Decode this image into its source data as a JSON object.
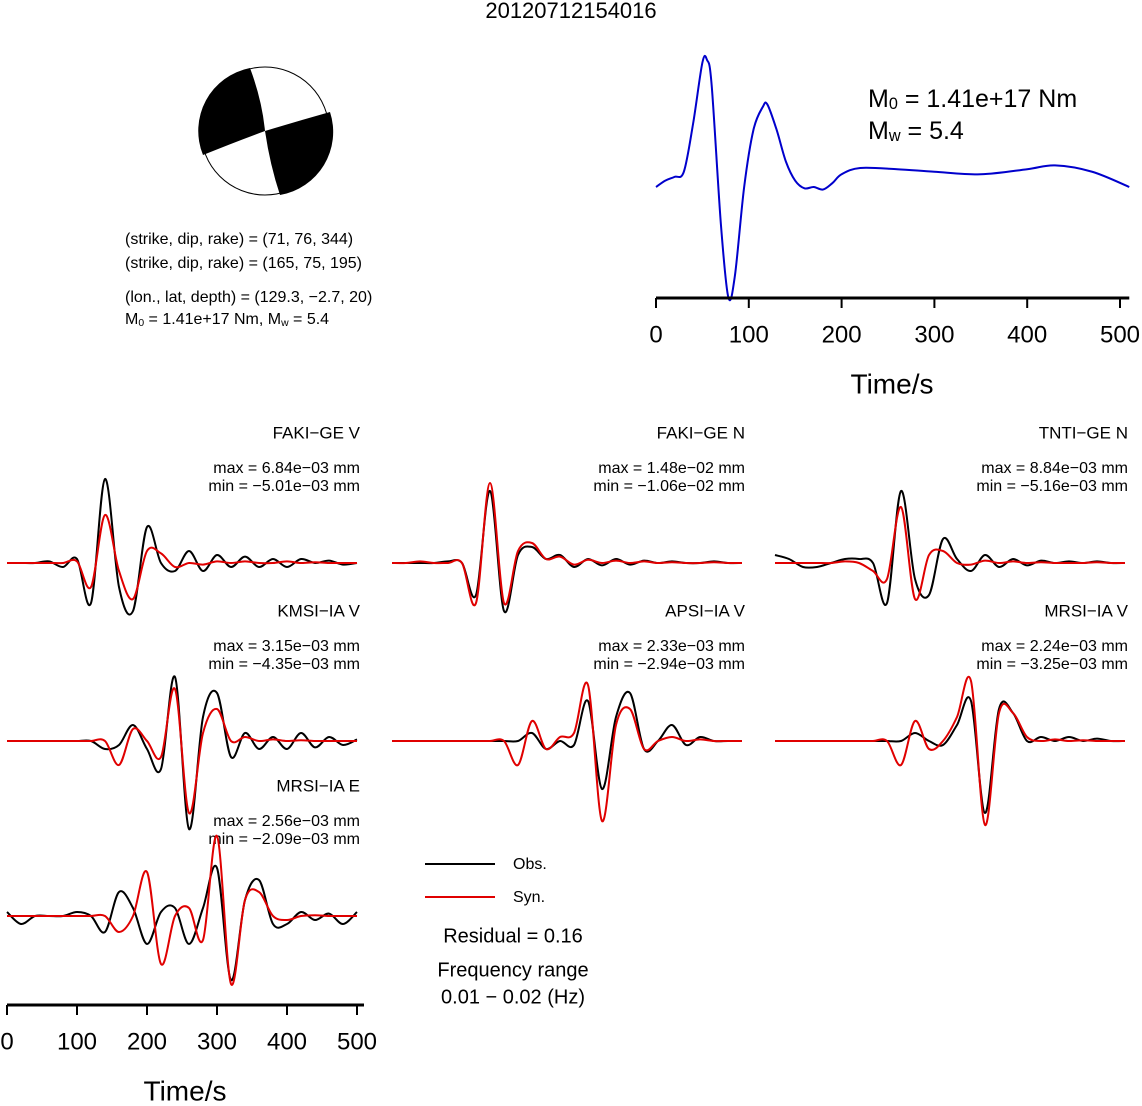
{
  "title": "20120712154016",
  "mechanism": {
    "plane1": "(strike, dip, rake) = (71, 76, 344)",
    "plane2": "(strike, dip, rake) = (165, 75, 195)",
    "location": "(lon., lat, depth) = (129.3, −2.7, 20)",
    "magnitude": [
      "M",
      "0",
      " = 1.41e+17 Nm, M",
      "w",
      " = 5.4"
    ]
  },
  "legend": [
    {
      "name": "Obs.",
      "color": "#000000"
    },
    {
      "name": "Syn.",
      "color": "#e00000"
    }
  ],
  "residual": "Residual = 0.16",
  "frequency": [
    "Frequency range",
    "0.01 − 0.02 (Hz)"
  ],
  "chart_data": [
    {
      "type": "line",
      "color": "#0000cc",
      "moment_label": [
        "M",
        "0",
        " = 1.41e+17 Nm"
      ],
      "magnitude_label": [
        "M",
        "w",
        " = 5.4"
      ],
      "x": [
        0,
        10,
        20,
        30,
        40,
        50,
        55,
        60,
        70,
        78,
        85,
        95,
        105,
        115,
        120,
        130,
        140,
        150,
        160,
        170,
        180,
        190,
        200,
        220,
        260,
        300,
        350,
        400,
        430,
        470,
        510
      ],
      "values": [
        0,
        0.05,
        0.08,
        0.12,
        0.5,
        0.98,
        1.0,
        0.8,
        -0.3,
        -0.87,
        -0.7,
        0,
        0.45,
        0.63,
        0.65,
        0.45,
        0.2,
        0.05,
        -0.01,
        0,
        -0.02,
        0.03,
        0.1,
        0.15,
        0.14,
        0.12,
        0.1,
        0.14,
        0.17,
        0.12,
        0
      ],
      "xlim": [
        0,
        510
      ],
      "xticks": [
        0,
        100,
        200,
        300,
        400,
        500
      ],
      "xlabel": "Time/s"
    },
    {
      "type": "waveform",
      "station": "FAKI−GE V",
      "max": "max = 6.84e−03 mm",
      "min": "min = −5.01e−03 mm",
      "xlim": [
        0,
        510
      ],
      "x": [
        0,
        20,
        40,
        60,
        80,
        100,
        120,
        140,
        160,
        180,
        200,
        220,
        240,
        260,
        280,
        300,
        320,
        340,
        360,
        380,
        400,
        420,
        440,
        460,
        480,
        500
      ],
      "series": [
        {
          "values": [
            0,
            0,
            0,
            0.02,
            -0.05,
            0.05,
            -0.5,
            1.05,
            -0.3,
            -0.6,
            0.45,
            0,
            -0.1,
            0.15,
            -0.1,
            0.1,
            -0.05,
            0.08,
            -0.05,
            0.05,
            -0.05,
            0.05,
            0,
            0.03,
            -0.02,
            0
          ]
        },
        {
          "values": [
            0,
            0,
            0,
            0,
            0,
            0.02,
            -0.3,
            0.6,
            -0.1,
            -0.45,
            0.15,
            0.12,
            -0.05,
            0,
            -0.02,
            0.02,
            0,
            0.02,
            0,
            0,
            0.02,
            0,
            0.01,
            0,
            0,
            0
          ]
        }
      ]
    },
    {
      "type": "waveform",
      "station": "FAKI−GE N",
      "max": "max = 1.48e−02 mm",
      "min": "min = −1.06e−02 mm",
      "xlim": [
        0,
        510
      ],
      "x": [
        0,
        20,
        40,
        60,
        80,
        100,
        120,
        140,
        160,
        180,
        200,
        220,
        240,
        260,
        280,
        300,
        320,
        340,
        360,
        380,
        400,
        420,
        440,
        460,
        480,
        500
      ],
      "series": [
        {
          "values": [
            0,
            0,
            0,
            0,
            0.02,
            0,
            -0.4,
            0.9,
            -0.6,
            0.1,
            0.2,
            0.05,
            0.1,
            -0.05,
            0.05,
            -0.03,
            0.05,
            -0.02,
            0.03,
            0,
            0.02,
            0,
            0,
            0.02,
            0,
            0
          ]
        },
        {
          "values": [
            0,
            0,
            0.02,
            0,
            0,
            0,
            -0.5,
            1.0,
            -0.5,
            0.15,
            0.25,
            0.05,
            0.08,
            -0.02,
            0.04,
            0,
            0.03,
            0,
            0.02,
            0,
            0.01,
            0,
            0,
            0.01,
            0,
            0
          ]
        }
      ]
    },
    {
      "type": "waveform",
      "station": "TNTI−GE N",
      "max": "max = 8.84e−03 mm",
      "min": "min = −5.16e−03 mm",
      "xlim": [
        0,
        510
      ],
      "x": [
        0,
        20,
        40,
        60,
        80,
        100,
        120,
        140,
        160,
        180,
        200,
        220,
        240,
        260,
        280,
        300,
        320,
        340,
        360,
        380,
        400,
        420,
        440,
        460,
        480,
        500
      ],
      "series": [
        {
          "values": [
            0.1,
            0.05,
            -0.05,
            -0.05,
            0,
            0.05,
            0.05,
            0,
            -0.5,
            0.9,
            -0.2,
            -0.4,
            0.3,
            0.05,
            -0.1,
            0.1,
            -0.05,
            0.05,
            -0.03,
            0.03,
            0,
            0.02,
            0,
            0.02,
            0,
            0
          ]
        },
        {
          "values": [
            0,
            0,
            0,
            0,
            0,
            0.02,
            0,
            -0.1,
            -0.2,
            0.7,
            -0.45,
            0.1,
            0.15,
            0,
            -0.02,
            0.03,
            0,
            0.02,
            0,
            0.01,
            0,
            0,
            0,
            0.01,
            0,
            0
          ]
        }
      ]
    },
    {
      "type": "waveform",
      "station": "KMSI−IA V",
      "max": "max = 3.15e−03 mm",
      "min": "min = −4.35e−03 mm",
      "xlim": [
        0,
        510
      ],
      "x": [
        0,
        20,
        40,
        60,
        80,
        100,
        120,
        140,
        160,
        180,
        200,
        220,
        240,
        260,
        280,
        300,
        320,
        340,
        360,
        380,
        400,
        420,
        440,
        460,
        480,
        500
      ],
      "series": [
        {
          "values": [
            0,
            0,
            0,
            0,
            0,
            0,
            0,
            -0.1,
            -0.05,
            0.2,
            -0.1,
            -0.35,
            0.8,
            -1.1,
            0.3,
            0.6,
            -0.2,
            0.1,
            -0.1,
            0.05,
            -0.1,
            0.1,
            -0.08,
            0.05,
            -0.05,
            0.02
          ]
        },
        {
          "values": [
            0,
            0,
            0,
            0,
            0,
            0,
            0,
            0,
            -0.3,
            0.15,
            0,
            -0.2,
            0.65,
            -0.9,
            0.1,
            0.4,
            0,
            0.05,
            0,
            0.02,
            0,
            0.01,
            0,
            0,
            0,
            0
          ]
        }
      ]
    },
    {
      "type": "waveform",
      "station": "APSI−IA V",
      "max": "max = 2.33e−03 mm",
      "min": "min = −2.94e−03 mm",
      "xlim": [
        0,
        510
      ],
      "x": [
        0,
        20,
        40,
        60,
        80,
        100,
        120,
        140,
        160,
        180,
        200,
        220,
        240,
        260,
        280,
        300,
        320,
        340,
        360,
        380,
        400,
        420,
        440,
        460,
        480,
        500
      ],
      "series": [
        {
          "values": [
            0,
            0,
            0,
            0,
            0,
            0,
            0,
            0,
            0,
            0,
            0.1,
            -0.1,
            0,
            -0.05,
            0.5,
            -0.6,
            0.3,
            0.6,
            -0.1,
            0,
            0.2,
            -0.05,
            0.05,
            0,
            0,
            0
          ]
        },
        {
          "values": [
            0,
            0,
            0,
            0,
            0,
            0,
            0,
            0,
            0,
            -0.3,
            0.25,
            -0.1,
            0.05,
            0.1,
            0.7,
            -1.0,
            0.2,
            0.4,
            -0.1,
            0,
            0.05,
            0,
            0.02,
            0,
            0,
            0
          ]
        }
      ]
    },
    {
      "type": "waveform",
      "station": "MRSI−IA V",
      "max": "max = 2.24e−03 mm",
      "min": "min = −3.25e−03 mm",
      "xlim": [
        0,
        510
      ],
      "x": [
        0,
        20,
        40,
        60,
        80,
        100,
        120,
        140,
        160,
        180,
        200,
        220,
        240,
        260,
        280,
        300,
        320,
        340,
        360,
        380,
        400,
        420,
        440,
        460,
        480,
        500
      ],
      "series": [
        {
          "values": [
            0,
            0,
            0,
            0,
            0,
            0,
            0,
            0,
            0,
            0,
            0.1,
            0,
            -0.05,
            0.2,
            0.5,
            -0.9,
            0.4,
            0.35,
            0,
            0.05,
            0,
            0.05,
            0,
            0.03,
            0,
            0
          ]
        },
        {
          "values": [
            0,
            0,
            0,
            0,
            0,
            0,
            0,
            0,
            0,
            -0.3,
            0.25,
            -0.1,
            0,
            0.3,
            0.75,
            -1.05,
            0.35,
            0.35,
            0.05,
            0,
            0.02,
            0,
            0.01,
            0,
            0,
            0
          ]
        }
      ]
    },
    {
      "type": "waveform",
      "station": "MRSI−IA E",
      "max": "max = 2.56e−03 mm",
      "min": "min = −2.09e−03 mm",
      "xlim": [
        0,
        510
      ],
      "x": [
        0,
        20,
        40,
        60,
        80,
        100,
        120,
        140,
        160,
        180,
        200,
        220,
        240,
        260,
        280,
        300,
        320,
        340,
        360,
        380,
        400,
        420,
        440,
        460,
        480,
        500
      ],
      "series": [
        {
          "values": [
            0.05,
            -0.1,
            0,
            0,
            0,
            0.05,
            0,
            -0.2,
            0.3,
            0.1,
            -0.35,
            0.05,
            0.1,
            -0.35,
            0.1,
            0.6,
            -0.8,
            0.2,
            0.45,
            -0.1,
            -0.1,
            0.05,
            -0.05,
            0.03,
            -0.1,
            0.05
          ]
        },
        {
          "values": [
            0,
            0,
            0,
            0,
            0,
            0,
            0,
            0,
            -0.2,
            0,
            0.55,
            -0.6,
            0,
            0.1,
            -0.3,
            1.0,
            -0.85,
            0.2,
            0.3,
            0,
            -0.05,
            0,
            0.01,
            0,
            0,
            0
          ]
        }
      ],
      "xticks": [
        0,
        100,
        200,
        300,
        400,
        500
      ],
      "xlabel": "Time/s"
    }
  ]
}
